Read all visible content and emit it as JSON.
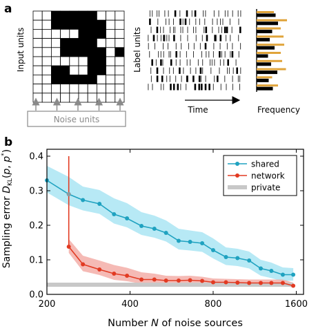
{
  "panel_a": {
    "label": "a",
    "input_ylabel": "Input units",
    "noise_label": "Noise units",
    "raster_ylabel": "Label units",
    "time_label": "Time",
    "freq_label": "Frequency",
    "grid": {
      "rows": 10,
      "cols": 10,
      "filled": [
        [
          1,
          3
        ],
        [
          1,
          4
        ],
        [
          1,
          5
        ],
        [
          1,
          6
        ],
        [
          1,
          7
        ],
        [
          2,
          3
        ],
        [
          2,
          4
        ],
        [
          2,
          5
        ],
        [
          2,
          6
        ],
        [
          2,
          7
        ],
        [
          2,
          8
        ],
        [
          3,
          6
        ],
        [
          3,
          7
        ],
        [
          3,
          8
        ],
        [
          4,
          4
        ],
        [
          4,
          5
        ],
        [
          4,
          6
        ],
        [
          4,
          7
        ],
        [
          5,
          4
        ],
        [
          5,
          5
        ],
        [
          5,
          6
        ],
        [
          5,
          7
        ],
        [
          5,
          8
        ],
        [
          5,
          10
        ],
        [
          6,
          7
        ],
        [
          6,
          8
        ],
        [
          7,
          3
        ],
        [
          7,
          4
        ],
        [
          7,
          7
        ],
        [
          7,
          8
        ],
        [
          8,
          3
        ],
        [
          8,
          4
        ],
        [
          8,
          5
        ],
        [
          8,
          6
        ],
        [
          8,
          7
        ]
      ]
    },
    "noise_arrow_count": 5,
    "frequency_bars": {
      "black": [
        0.55,
        0.62,
        0.45,
        0.38,
        0.52,
        0.33,
        0.42,
        0.6,
        0.35,
        0.47
      ],
      "orange": [
        0.5,
        0.88,
        0.7,
        0.78,
        0.8,
        0.7,
        0.74,
        0.85,
        0.45,
        0.62
      ]
    },
    "colors": {
      "black_bar": "#000000",
      "orange_bar": "#e0a43a",
      "arrow": "#8a8a8a"
    }
  },
  "panel_b": {
    "label": "b",
    "chart_data": {
      "type": "line",
      "xlabel": "Number N of noise sources",
      "ylabel": "Sampling error D_KL(p, p*)",
      "xscale": "log",
      "xlim": [
        200,
        1700
      ],
      "ylim": [
        0,
        0.42
      ],
      "xticks": [
        200,
        400,
        800,
        1600
      ],
      "yticks": [
        0.0,
        0.1,
        0.2,
        0.3,
        0.4
      ],
      "xtick_labels": [
        "200",
        "400",
        "800",
        "1600"
      ],
      "ytick_labels": [
        "0.0",
        "0.1",
        "0.2",
        "0.3",
        "0.4"
      ],
      "legend_position": "top-right",
      "series": [
        {
          "name": "shared",
          "color": "#1fa2c0",
          "band_color": "#a5e3f2",
          "x": [
            200,
            240,
            270,
            310,
            350,
            390,
            440,
            490,
            540,
            600,
            660,
            730,
            800,
            890,
            980,
            1080,
            1190,
            1300,
            1430,
            1560
          ],
          "y": [
            0.33,
            0.29,
            0.273,
            0.262,
            0.232,
            0.22,
            0.198,
            0.19,
            0.178,
            0.155,
            0.152,
            0.148,
            0.128,
            0.108,
            0.105,
            0.098,
            0.075,
            0.068,
            0.057,
            0.057
          ],
          "band_low": [
            0.295,
            0.258,
            0.243,
            0.233,
            0.205,
            0.194,
            0.172,
            0.164,
            0.153,
            0.13,
            0.127,
            0.123,
            0.104,
            0.085,
            0.082,
            0.075,
            0.054,
            0.047,
            0.038,
            0.04
          ],
          "band_high": [
            0.372,
            0.34,
            0.312,
            0.302,
            0.278,
            0.264,
            0.238,
            0.228,
            0.214,
            0.19,
            0.185,
            0.18,
            0.162,
            0.136,
            0.132,
            0.124,
            0.1,
            0.092,
            0.078,
            0.076
          ]
        },
        {
          "name": "network",
          "color": "#e23a22",
          "band_color": "#f3a9a2",
          "x": [
            240,
            270,
            310,
            350,
            390,
            440,
            490,
            540,
            600,
            660,
            730,
            800,
            890,
            980,
            1080,
            1190,
            1300,
            1430,
            1560
          ],
          "y": [
            0.138,
            0.087,
            0.072,
            0.06,
            0.054,
            0.043,
            0.043,
            0.04,
            0.04,
            0.041,
            0.039,
            0.035,
            0.035,
            0.034,
            0.033,
            0.033,
            0.033,
            0.033,
            0.025
          ],
          "band_low": [
            0.12,
            0.067,
            0.056,
            0.042,
            0.038,
            0.031,
            0.031,
            0.029,
            0.029,
            0.029,
            0.029,
            0.027,
            0.027,
            0.026,
            0.025,
            0.025,
            0.025,
            0.025,
            0.02
          ],
          "band_high": [
            0.16,
            0.112,
            0.098,
            0.085,
            0.077,
            0.064,
            0.06,
            0.054,
            0.053,
            0.054,
            0.051,
            0.046,
            0.045,
            0.044,
            0.043,
            0.043,
            0.043,
            0.043,
            0.034
          ],
          "spike_x": 240,
          "spike_y_top": 0.4
        },
        {
          "name": "private",
          "color": "#c8c8c8",
          "x": [
            200,
            1560
          ],
          "y": [
            0.028,
            0.028
          ]
        }
      ]
    }
  }
}
